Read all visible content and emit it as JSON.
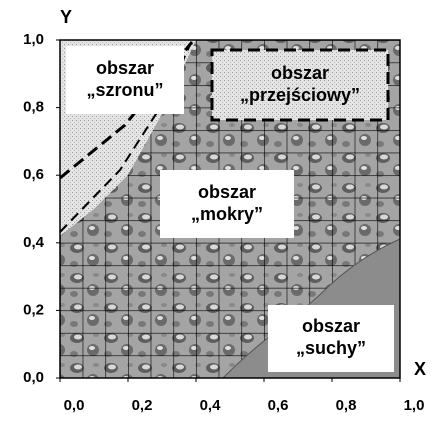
{
  "axes": {
    "x_label": "X",
    "y_label": "Y",
    "xlim": [
      0,
      1
    ],
    "ylim": [
      0,
      1
    ],
    "xticks": [
      {
        "value": 0,
        "label": "0,0"
      },
      {
        "value": 0.2,
        "label": "0,2"
      },
      {
        "value": 0.4,
        "label": "0,4"
      },
      {
        "value": 0.6,
        "label": "0,6"
      },
      {
        "value": 0.8,
        "label": "0,8"
      },
      {
        "value": 1,
        "label": "1,0"
      }
    ],
    "yticks": [
      {
        "value": 0,
        "label": "0,0"
      },
      {
        "value": 0.2,
        "label": "0,2"
      },
      {
        "value": 0.4,
        "label": "0,4"
      },
      {
        "value": 0.6,
        "label": "0,6"
      },
      {
        "value": 0.8,
        "label": "0,8"
      },
      {
        "value": 1,
        "label": "1,0"
      }
    ]
  },
  "regions": [
    {
      "lines": [
        "obszar",
        "„szronu”"
      ]
    },
    {
      "lines": [
        "obszar",
        "„przejściowy”"
      ]
    },
    {
      "lines": [
        "obszar",
        "„mokry”"
      ]
    },
    {
      "lines": [
        "obszar",
        "„suchy”"
      ]
    }
  ]
}
